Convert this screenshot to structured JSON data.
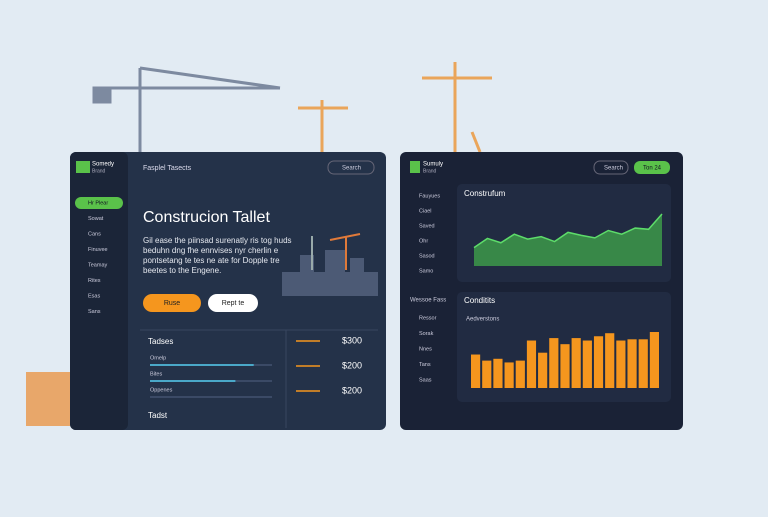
{
  "left_panel": {
    "brand": "Somedy",
    "brand_sub": "Brand",
    "top_title": "Fasplel Tasects",
    "search": "Search",
    "nav": [
      "Hr Plear",
      "Sowat",
      "Cans",
      "Finuvee",
      "Teamay",
      "Rites",
      "Esas",
      "Sans"
    ],
    "hero": {
      "title": "Construcion Tallet",
      "body": [
        "Gil ease the piinsad surenatly ris tog huds",
        "beduhn dng fhe ennvises nyr cherlin e",
        "pontsetang te tes ne ate for Dopple tre",
        "beetes to the Engene."
      ],
      "primary": "Ruse",
      "secondary": "Rept te"
    },
    "table": {
      "title": "Tadses",
      "rows": [
        {
          "label": "Omelp",
          "progress": 85
        },
        {
          "label": "Bites",
          "progress": 70
        },
        {
          "label": "Oppenes",
          "progress": 0
        }
      ],
      "section2": "Tadst",
      "prices": [
        "$300",
        "$200",
        "$200"
      ]
    }
  },
  "right_panel": {
    "brand": "Sumuly",
    "brand_sub": "Brand",
    "search": "Search",
    "button": "Ton 24",
    "nav": [
      "Fauyues",
      "Ciael",
      "Saved",
      "Ohr",
      "Sasod",
      "Samo"
    ],
    "nav2_title": "Wessoe Fass",
    "nav2": [
      "Ressor",
      "Sorak",
      "Nnes",
      "Tans",
      "Saas"
    ],
    "area_card": {
      "title": "Construfum",
      "color": "#3fa04a",
      "values": [
        30,
        45,
        38,
        52,
        44,
        48,
        40,
        55,
        50,
        46,
        58,
        52,
        62,
        60,
        85
      ]
    },
    "bar_card": {
      "title": "Conditits",
      "subtitle": "Aedverstons",
      "color": "#f5961e",
      "values": [
        55,
        45,
        48,
        42,
        45,
        78,
        58,
        82,
        72,
        82,
        78,
        85,
        90,
        78,
        80,
        80,
        92
      ]
    }
  }
}
